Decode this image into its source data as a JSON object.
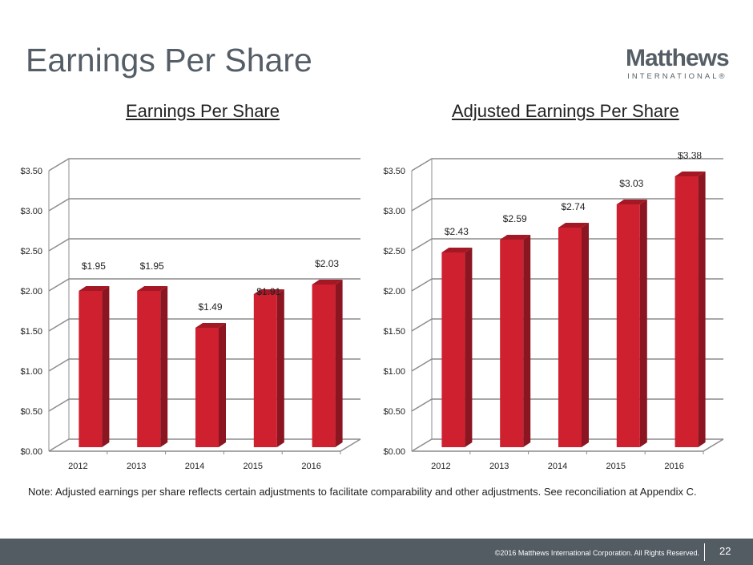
{
  "page": {
    "title": "Earnings Per Share",
    "logo_main": "Matthews",
    "logo_sub": "INTERNATIONAL®"
  },
  "note": "Note: Adjusted earnings per share reflects certain adjustments to facilitate comparability and other adjustments. See reconciliation at Appendix C.",
  "footer": {
    "copyright": "©2016 Matthews International Corporation. All Rights Reserved.",
    "page_number": "22"
  },
  "colors": {
    "bar_front": "#cf202f",
    "bar_side": "#8b1520",
    "grid": "#8c8c8c"
  },
  "chart_data": [
    {
      "type": "bar",
      "title": "Earnings Per Share",
      "categories": [
        "2012",
        "2013",
        "2014",
        "2015",
        "2016"
      ],
      "values": [
        1.95,
        1.95,
        1.49,
        1.91,
        2.03
      ],
      "labels": [
        "$1.95",
        "$1.95",
        "$1.49",
        "$1.91",
        "$2.03"
      ],
      "ylim": [
        0,
        3.5
      ],
      "yticks": [
        "$0.00",
        "$0.50",
        "$1.00",
        "$1.50",
        "$2.00",
        "$2.50",
        "$3.00",
        "$3.50"
      ],
      "grid": true
    },
    {
      "type": "bar",
      "title": "Adjusted Earnings Per Share",
      "categories": [
        "2012",
        "2013",
        "2014",
        "2015",
        "2016"
      ],
      "values": [
        2.43,
        2.59,
        2.74,
        3.03,
        3.38
      ],
      "labels": [
        "$2.43",
        "$2.59",
        "$2.74",
        "$3.03",
        "$3.38"
      ],
      "ylim": [
        0,
        3.5
      ],
      "yticks": [
        "$0.00",
        "$0.50",
        "$1.00",
        "$1.50",
        "$2.00",
        "$2.50",
        "$3.00",
        "$3.50"
      ],
      "grid": true
    }
  ]
}
